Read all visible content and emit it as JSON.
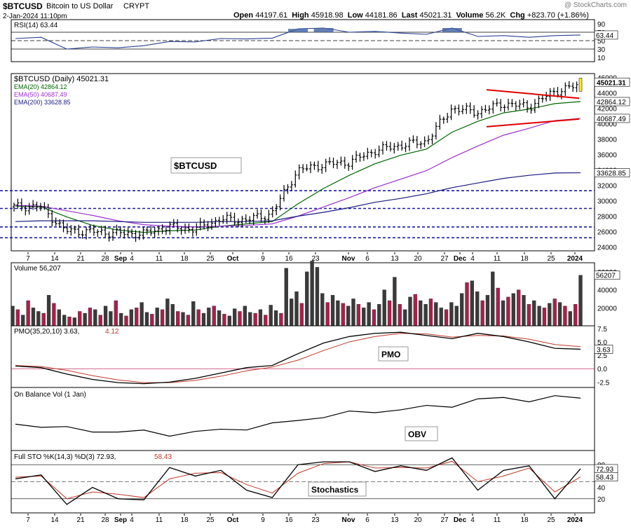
{
  "header": {
    "symbol": "$BTCUSD",
    "name": "Bitcoin to US Dollar",
    "exchange": "CRYPT",
    "date": "2-Jan-2024 11:10pm",
    "open_label": "Open",
    "open": "44197.61",
    "high_label": "High",
    "high": "45918.98",
    "low_label": "Low",
    "low": "44181.86",
    "last_label": "Last",
    "last": "45021.31",
    "volume_label": "Volume",
    "volume": "56.2K",
    "chg_label": "Chg",
    "chg": "+823.70 (+1.86%)",
    "credit": "@ StockCharts.com"
  },
  "rsi": {
    "label": "RSI(14)",
    "value": "63.44",
    "ticks": [
      "90",
      "70",
      "50",
      "30",
      "10"
    ],
    "last_tag": "63.44"
  },
  "price": {
    "title": "$BTCUSD (Daily)",
    "title_value": "45021.31",
    "ema20_label": "EMA(20)",
    "ema20": "42864.12",
    "ema50_label": "EMA(50)",
    "ema50": "40687.49",
    "ema200_label": "EMA(200)",
    "ema200": "33628.85",
    "box_label": "$BTCUSD",
    "ticks": [
      "46000",
      "44000",
      "42000",
      "40000",
      "38000",
      "36000",
      "34000",
      "32000",
      "30000",
      "28000",
      "26000",
      "24000"
    ],
    "tags": [
      "45021.31",
      "42864.12",
      "40687.49",
      "33628.85"
    ]
  },
  "volume": {
    "label": "Volume",
    "value": "56,207",
    "ticks": [
      "60000",
      "40000",
      "20000"
    ],
    "tag": "56207"
  },
  "pmo": {
    "label": "PMO(35,20,10)",
    "value1": "3.63",
    "value2": "4.12",
    "box_label": "PMO",
    "ticks": [
      "7.5",
      "5.0",
      "2.5",
      "0.0",
      "-2.5"
    ],
    "tag": "3.63"
  },
  "obv": {
    "label": "On Balance Vol (1 Jan)",
    "box_label": "OBV"
  },
  "sto": {
    "label": "Full STO %K(14,3) %D(3)",
    "k": "72.93",
    "d": "58.43",
    "box_label": "Stochastics",
    "ticks": [
      "80",
      "60",
      "40",
      "20"
    ],
    "tags": [
      "72.93",
      "58.43"
    ]
  },
  "x_labels": [
    "7",
    "14",
    "21",
    "28",
    "Sep",
    "4",
    "11",
    "18",
    "25",
    "Oct",
    "9",
    "16",
    "23",
    "Nov",
    "6",
    "13",
    "20",
    "27",
    "Dec",
    "4",
    "11",
    "18",
    "25",
    "2024"
  ],
  "colors": {
    "up": "#000000",
    "down": "#e60000",
    "ema20": "#006400",
    "ema50": "#9b30d0",
    "ema200": "#1a1a80",
    "vol_up": "#3a3a3a",
    "vol_down": "#a8204a",
    "pmo": "#000000",
    "pmo_signal": "#c0392b",
    "rsi_fill": "#3f5f9f",
    "trend": "#e00000",
    "support": "#1a1aa0"
  },
  "chart_data": {
    "type": "line",
    "title": "$BTCUSD (Daily)",
    "x": [
      "Aug 7",
      "Aug 14",
      "Aug 21",
      "Aug 28",
      "Sep 4",
      "Sep 11",
      "Sep 18",
      "Sep 25",
      "Oct 2",
      "Oct 9",
      "Oct 16",
      "Oct 23",
      "Oct 30",
      "Nov 6",
      "Nov 13",
      "Nov 20",
      "Nov 27",
      "Dec 4",
      "Dec 11",
      "Dec 18",
      "Dec 25",
      "Jan 1",
      "Jan 2"
    ],
    "series": [
      {
        "name": "$BTCUSD",
        "values": [
          29200,
          29300,
          26100,
          26000,
          25800,
          25700,
          26600,
          26300,
          27600,
          27500,
          28300,
          33900,
          34700,
          35000,
          36500,
          37200,
          37700,
          42000,
          41500,
          42600,
          42200,
          44200,
          45021
        ]
      },
      {
        "name": "EMA(20)",
        "values": [
          29300,
          29200,
          27900,
          26800,
          26200,
          25900,
          26100,
          26200,
          26700,
          27000,
          27300,
          29600,
          31600,
          33300,
          34800,
          35900,
          36700,
          38900,
          40300,
          41400,
          41900,
          42600,
          42864
        ]
      },
      {
        "name": "EMA(50)",
        "values": [
          29400,
          29300,
          28700,
          28100,
          27400,
          26900,
          26700,
          26600,
          26700,
          26800,
          27000,
          28000,
          29200,
          30400,
          31700,
          32800,
          33900,
          35600,
          37100,
          38500,
          39400,
          40400,
          40687
        ]
      },
      {
        "name": "EMA(200)",
        "values": [
          27300,
          27400,
          27400,
          27400,
          27300,
          27200,
          27200,
          27200,
          27300,
          27300,
          27400,
          28000,
          28500,
          29100,
          29800,
          30300,
          30900,
          31700,
          32300,
          32900,
          33300,
          33600,
          33629
        ]
      }
    ],
    "ylim": [
      23500,
      46500
    ],
    "support_lines": [
      31300,
      29000,
      26600,
      25200
    ],
    "panels": {
      "rsi": {
        "ylim": [
          0,
          100
        ],
        "values": [
          55,
          58,
          30,
          35,
          33,
          38,
          48,
          47,
          55,
          54,
          56,
          78,
          80,
          70,
          72,
          68,
          65,
          80,
          60,
          62,
          58,
          62,
          63.44
        ]
      },
      "volume": {
        "ylim": [
          0,
          70000
        ],
        "values": [
          22000,
          18000,
          12000,
          28000,
          20000,
          16000,
          14000,
          34000,
          25000,
          18000,
          12000,
          10000,
          9000,
          16000,
          14000,
          20000,
          18000,
          12000,
          22000,
          16000,
          28000,
          14000,
          11000,
          18000,
          20000,
          26000,
          15000,
          13000,
          20000,
          18000,
          30000,
          24000,
          16000,
          15000,
          12000,
          27000,
          18000,
          14000,
          20000,
          22000,
          17000,
          13000,
          11000,
          19000,
          16000,
          22000,
          15000,
          14000,
          18000,
          12000,
          23000,
          17000,
          14000,
          64000,
          30000,
          38000,
          25000,
          60000,
          72000,
          65000,
          36000,
          26000,
          34000,
          28000,
          25000,
          22000,
          30000,
          24000,
          20000,
          26000,
          18000,
          24000,
          40000,
          28000,
          54000,
          24000,
          18000,
          32000,
          35000,
          28000,
          24000,
          30000,
          26000,
          20000,
          18000,
          26000,
          22000,
          36000,
          48000,
          50000,
          38000,
          28000,
          34000,
          60000,
          42000,
          28000,
          32000,
          36000,
          40000,
          34000,
          24000,
          28000,
          22000,
          20000,
          25000,
          30000,
          26000,
          22000,
          16000,
          24000,
          56207
        ],
        "up": [
          1,
          0,
          1,
          0,
          1,
          1,
          0,
          1,
          0,
          1,
          1,
          0,
          1,
          0,
          1,
          0,
          1,
          0,
          1,
          1,
          0,
          1,
          0,
          1,
          0,
          1,
          1,
          0,
          1,
          0,
          1,
          1,
          0,
          1,
          0,
          1,
          0,
          1,
          1,
          0,
          1,
          0,
          1,
          1,
          0,
          1,
          1,
          0,
          1,
          0,
          1,
          1,
          0,
          1,
          1,
          1,
          0,
          1,
          1,
          1,
          1,
          0,
          1,
          1,
          0,
          1,
          1,
          0,
          1,
          1,
          0,
          1,
          1,
          0,
          1,
          0,
          1,
          1,
          0,
          1,
          1,
          0,
          1,
          1,
          0,
          1,
          1,
          1,
          0,
          1,
          1,
          0,
          1,
          1,
          0,
          1,
          0,
          1,
          0,
          1,
          0,
          1,
          1,
          0,
          1,
          0,
          1,
          0,
          1,
          0,
          1
        ]
      },
      "pmo": {
        "ylim": [
          -3.5,
          8
        ],
        "values": [
          0.5,
          0.2,
          -1.0,
          -2.0,
          -2.6,
          -2.8,
          -2.5,
          -1.8,
          -0.8,
          0.2,
          0.6,
          2.8,
          4.8,
          6.0,
          6.6,
          6.8,
          6.2,
          5.6,
          6.6,
          6.0,
          5.0,
          3.8,
          3.63
        ],
        "signal": [
          0.6,
          0.4,
          -0.3,
          -1.3,
          -2.1,
          -2.6,
          -2.6,
          -2.2,
          -1.4,
          -0.4,
          0.3,
          1.6,
          3.4,
          5.0,
          6.0,
          6.6,
          6.5,
          5.9,
          6.2,
          6.1,
          5.5,
          4.5,
          4.12
        ]
      },
      "obv": {
        "values": [
          40,
          38,
          30,
          28,
          26,
          24,
          22,
          24,
          28,
          34,
          38,
          48,
          56,
          60,
          66,
          68,
          72,
          78,
          86,
          90,
          88,
          90,
          92
        ]
      },
      "stochastics": {
        "ylim": [
          0,
          100
        ],
        "k": [
          55,
          62,
          10,
          40,
          20,
          18,
          75,
          60,
          70,
          35,
          22,
          80,
          85,
          85,
          68,
          78,
          70,
          92,
          35,
          70,
          78,
          20,
          72.93
        ],
        "d": [
          58,
          60,
          20,
          32,
          28,
          22,
          55,
          65,
          66,
          45,
          30,
          65,
          82,
          85,
          74,
          75,
          74,
          86,
          50,
          60,
          74,
          32,
          58.43
        ]
      }
    }
  }
}
